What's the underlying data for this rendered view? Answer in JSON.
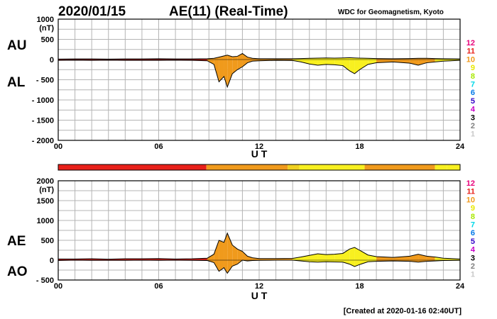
{
  "header": {
    "date": "2020/01/15",
    "title": "AE(11) (Real-Time)",
    "source": "WDC for Geomagnetism, Kyoto",
    "footer": "[Created at 2020-01-16 02:40UT]"
  },
  "legend": [
    {
      "label": "12",
      "color": "#e8007a"
    },
    {
      "label": "11",
      "color": "#e8201a"
    },
    {
      "label": "10",
      "color": "#f09a1c"
    },
    {
      "label": "9",
      "color": "#e8e800"
    },
    {
      "label": "8",
      "color": "#a8e800"
    },
    {
      "label": "7",
      "color": "#00d8e8"
    },
    {
      "label": "6",
      "color": "#0078e8"
    },
    {
      "label": "5",
      "color": "#3000c8"
    },
    {
      "label": "4",
      "color": "#c800c8"
    },
    {
      "label": "3",
      "color": "#000000"
    },
    {
      "label": "2",
      "color": "#808080"
    },
    {
      "label": "1",
      "color": "#c8c8c8"
    }
  ],
  "colorbar": [
    {
      "from": 0,
      "to": 8.85,
      "color": "#e8201a"
    },
    {
      "from": 8.85,
      "to": 13.7,
      "color": "#f09a1c"
    },
    {
      "from": 13.7,
      "to": 14.4,
      "color": "#f0d020"
    },
    {
      "from": 14.4,
      "to": 18.3,
      "color": "#f8f020"
    },
    {
      "from": 18.3,
      "to": 22.5,
      "color": "#f09a1c"
    },
    {
      "from": 22.5,
      "to": 23.2,
      "color": "#f8f020"
    },
    {
      "from": 23.2,
      "to": 24,
      "color": "#f8f020"
    }
  ],
  "chart_data": [
    {
      "type": "area",
      "name": "AU/AL",
      "labels": [
        "AU",
        "AL"
      ],
      "xlabel": "U T",
      "ylabel_unit": "(nT)",
      "xlim": [
        0,
        24
      ],
      "ylim": [
        -2000,
        1000
      ],
      "xticks": [
        "00",
        "06",
        "12",
        "18",
        "24"
      ],
      "yticks": [
        "1000",
        "500",
        "0",
        "- 500",
        "- 1000",
        "- 1500",
        "- 2000"
      ],
      "ytick_values": [
        1000,
        500,
        0,
        -500,
        -1000,
        -1500,
        -2000
      ],
      "x": [
        0,
        1,
        2,
        3,
        4,
        5,
        6,
        7,
        8,
        8.9,
        9.3,
        9.6,
        9.9,
        10.1,
        10.4,
        10.7,
        11.0,
        11.3,
        11.6,
        12,
        13,
        14,
        14.5,
        15,
        15.5,
        16,
        16.5,
        17,
        17.4,
        17.7,
        18,
        18.5,
        19,
        20,
        21,
        21.5,
        22,
        22.5,
        23,
        24
      ],
      "upper": [
        10,
        15,
        15,
        10,
        15,
        15,
        20,
        15,
        15,
        20,
        30,
        60,
        90,
        110,
        70,
        80,
        150,
        60,
        30,
        20,
        20,
        20,
        25,
        30,
        35,
        40,
        35,
        40,
        45,
        40,
        35,
        30,
        25,
        20,
        25,
        30,
        30,
        25,
        20,
        15
      ],
      "lower": [
        -20,
        -15,
        -20,
        -15,
        -20,
        -20,
        -20,
        -15,
        -20,
        -30,
        -120,
        -550,
        -420,
        -680,
        -350,
        -250,
        -180,
        -80,
        -40,
        -30,
        -20,
        -25,
        -60,
        -110,
        -140,
        -120,
        -130,
        -150,
        -280,
        -350,
        -250,
        -120,
        -80,
        -60,
        -90,
        -140,
        -80,
        -60,
        -40,
        -20
      ]
    },
    {
      "type": "area",
      "name": "AE/AO",
      "labels": [
        "AE",
        "AO"
      ],
      "xlabel": "U T",
      "ylabel_unit": "(nT)",
      "xlim": [
        0,
        24
      ],
      "ylim": [
        -500,
        2000
      ],
      "xticks": [
        "00",
        "06",
        "12",
        "18",
        "24"
      ],
      "yticks": [
        "2000",
        "1500",
        "1000",
        "500",
        "0",
        "- 500"
      ],
      "ytick_values": [
        2000,
        1500,
        1000,
        500,
        0,
        -500
      ],
      "x": [
        0,
        1,
        2,
        3,
        4,
        5,
        6,
        7,
        8,
        8.9,
        9.3,
        9.6,
        9.9,
        10.1,
        10.4,
        10.7,
        11.0,
        11.3,
        11.6,
        12,
        13,
        14,
        14.5,
        15,
        15.5,
        16,
        16.5,
        17,
        17.4,
        17.7,
        18,
        18.5,
        19,
        20,
        21,
        21.5,
        22,
        22.5,
        23,
        24
      ],
      "upper": [
        30,
        30,
        35,
        25,
        35,
        35,
        40,
        30,
        35,
        50,
        150,
        500,
        450,
        680,
        380,
        280,
        220,
        100,
        60,
        40,
        40,
        45,
        80,
        120,
        160,
        140,
        150,
        170,
        280,
        320,
        250,
        130,
        90,
        70,
        100,
        150,
        100,
        80,
        50,
        30
      ],
      "lower": [
        -10,
        0,
        -5,
        -5,
        -5,
        0,
        -5,
        0,
        -5,
        -10,
        -60,
        -280,
        -190,
        -330,
        -150,
        -100,
        0,
        -20,
        -10,
        -5,
        0,
        0,
        -20,
        -40,
        -50,
        -40,
        -45,
        -50,
        -100,
        -160,
        -110,
        -40,
        -30,
        -20,
        -30,
        -50,
        -30,
        -20,
        -10,
        -5
      ]
    }
  ]
}
